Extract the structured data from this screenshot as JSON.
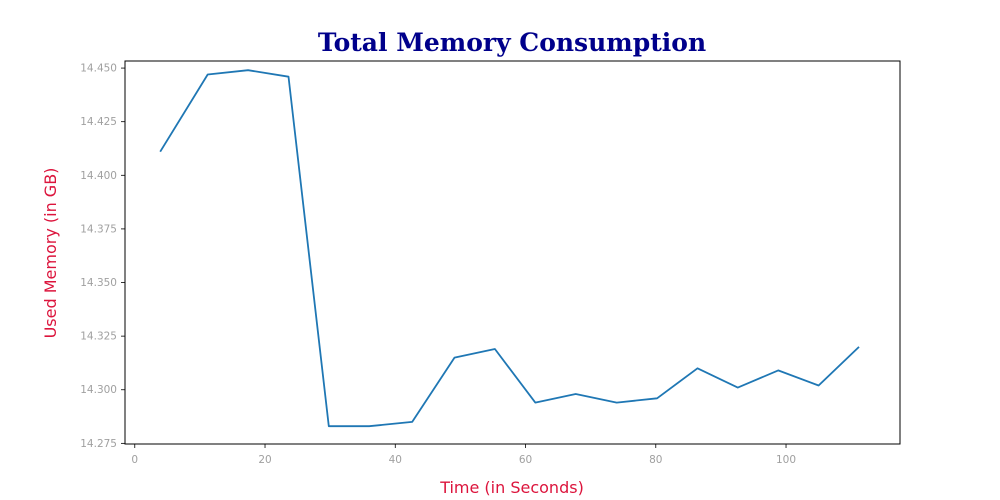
{
  "chart_data": {
    "type": "line",
    "title": "Total Memory Consumption",
    "xlabel": "Time (in Seconds)",
    "ylabel": "Used Memory (in GB)",
    "xlim": [
      -1.5,
      117.5
    ],
    "ylim": [
      14.2747,
      14.4533
    ],
    "x_ticks": [
      0,
      20,
      40,
      60,
      80,
      100
    ],
    "y_ticks": [
      14.275,
      14.3,
      14.325,
      14.35,
      14.375,
      14.4,
      14.425,
      14.45
    ],
    "grid": false,
    "colors": {
      "title": "#00008b",
      "axis_label": "#dc143c",
      "tick_label": "#a0a0a0",
      "line": "#1f77b4"
    },
    "series": [
      {
        "x": [
          3.9,
          11.2,
          17.4,
          23.6,
          29.8,
          36.0,
          42.6,
          49.1,
          55.3,
          61.5,
          67.7,
          74.0,
          80.2,
          86.4,
          92.6,
          98.8,
          105.0,
          111.2
        ],
        "values": [
          14.411,
          14.447,
          14.449,
          14.446,
          14.283,
          14.283,
          14.285,
          14.315,
          14.319,
          14.294,
          14.298,
          14.294,
          14.296,
          14.31,
          14.301,
          14.309,
          14.302,
          14.32
        ]
      }
    ]
  }
}
